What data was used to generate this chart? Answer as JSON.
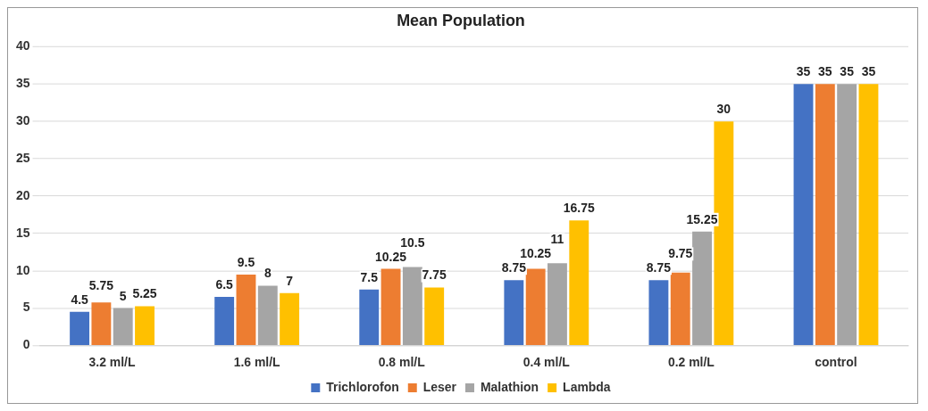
{
  "chart_data": {
    "type": "bar",
    "title": "Mean Population",
    "categories": [
      "3.2 ml/L",
      "1.6 ml/L",
      "0.8 ml/L",
      "0.4 ml/L",
      "0.2 ml/L",
      "control"
    ],
    "series": [
      {
        "name": "Trichlorofon",
        "color": "#4472c4",
        "values": [
          4.5,
          6.5,
          7.5,
          8.75,
          8.75,
          35
        ]
      },
      {
        "name": "Leser",
        "color": "#ed7d31",
        "values": [
          5.75,
          9.5,
          10.25,
          10.25,
          9.75,
          35
        ]
      },
      {
        "name": "Malathion",
        "color": "#a5a5a5",
        "values": [
          5,
          8,
          10.5,
          11,
          15.25,
          35
        ]
      },
      {
        "name": "Lambda",
        "color": "#ffc000",
        "values": [
          5.25,
          7,
          7.75,
          16.75,
          30,
          35
        ]
      }
    ],
    "ylim": [
      0,
      40
    ],
    "yticks": [
      0,
      5,
      10,
      15,
      20,
      25,
      30,
      35,
      40
    ],
    "grid": "y",
    "legend": "bottom",
    "data_labels": true
  }
}
